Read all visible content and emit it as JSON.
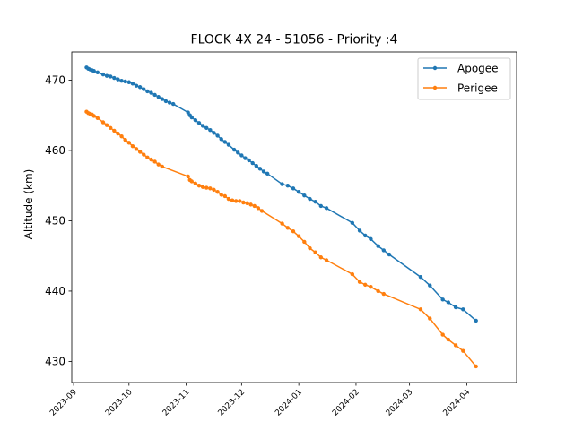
{
  "chart_data": {
    "type": "line",
    "title": "FLOCK 4X 24 - 51056 - Priority :4",
    "xlabel": "",
    "ylabel": "Altitude (km)",
    "xlim": [
      "2023-08-31",
      "2024-04-28"
    ],
    "ylim": [
      427,
      474
    ],
    "yticks": [
      430,
      440,
      450,
      460,
      470
    ],
    "xticks": [
      "2023-09",
      "2023-10",
      "2023-11",
      "2023-12",
      "2024-01",
      "2024-02",
      "2024-03",
      "2024-04"
    ],
    "grid": false,
    "legend_position": "top-right",
    "series": [
      {
        "name": "Apogee",
        "color": "#1f77b4",
        "marker": "circle",
        "points": [
          [
            "2023-09-08",
            471.8
          ],
          [
            "2023-09-09",
            471.6
          ],
          [
            "2023-09-10",
            471.5
          ],
          [
            "2023-09-11",
            471.4
          ],
          [
            "2023-09-12",
            471.3
          ],
          [
            "2023-09-14",
            471.1
          ],
          [
            "2023-09-17",
            470.8
          ],
          [
            "2023-09-19",
            470.6
          ],
          [
            "2023-09-21",
            470.5
          ],
          [
            "2023-09-23",
            470.3
          ],
          [
            "2023-09-25",
            470.1
          ],
          [
            "2023-09-27",
            469.9
          ],
          [
            "2023-09-29",
            469.8
          ],
          [
            "2023-10-01",
            469.7
          ],
          [
            "2023-10-03",
            469.5
          ],
          [
            "2023-10-05",
            469.2
          ],
          [
            "2023-10-07",
            469.0
          ],
          [
            "2023-10-09",
            468.7
          ],
          [
            "2023-10-11",
            468.4
          ],
          [
            "2023-10-13",
            468.2
          ],
          [
            "2023-10-15",
            467.9
          ],
          [
            "2023-10-17",
            467.6
          ],
          [
            "2023-10-19",
            467.3
          ],
          [
            "2023-10-21",
            467.0
          ],
          [
            "2023-10-23",
            466.8
          ],
          [
            "2023-10-25",
            466.6
          ],
          [
            "2023-11-02",
            465.4
          ],
          [
            "2023-11-03",
            465.0
          ],
          [
            "2023-11-04",
            464.7
          ],
          [
            "2023-11-06",
            464.3
          ],
          [
            "2023-11-08",
            463.9
          ],
          [
            "2023-11-10",
            463.5
          ],
          [
            "2023-11-12",
            463.2
          ],
          [
            "2023-11-14",
            462.9
          ],
          [
            "2023-11-16",
            462.5
          ],
          [
            "2023-11-18",
            462.1
          ],
          [
            "2023-11-20",
            461.6
          ],
          [
            "2023-11-22",
            461.2
          ],
          [
            "2023-11-24",
            460.8
          ],
          [
            "2023-11-27",
            460.1
          ],
          [
            "2023-11-29",
            459.7
          ],
          [
            "2023-12-01",
            459.3
          ],
          [
            "2023-12-03",
            458.9
          ],
          [
            "2023-12-05",
            458.6
          ],
          [
            "2023-12-07",
            458.2
          ],
          [
            "2023-12-09",
            457.8
          ],
          [
            "2023-12-11",
            457.4
          ],
          [
            "2023-12-13",
            457.0
          ],
          [
            "2023-12-15",
            456.7
          ],
          [
            "2023-12-23",
            455.2
          ],
          [
            "2023-12-26",
            455.0
          ],
          [
            "2023-12-29",
            454.6
          ],
          [
            "2024-01-01",
            454.1
          ],
          [
            "2024-01-04",
            453.6
          ],
          [
            "2024-01-07",
            453.1
          ],
          [
            "2024-01-10",
            452.7
          ],
          [
            "2024-01-13",
            452.1
          ],
          [
            "2024-01-16",
            451.8
          ],
          [
            "2024-01-30",
            449.7
          ],
          [
            "2024-02-03",
            448.6
          ],
          [
            "2024-02-06",
            447.9
          ],
          [
            "2024-02-09",
            447.4
          ],
          [
            "2024-02-13",
            446.4
          ],
          [
            "2024-02-16",
            445.8
          ],
          [
            "2024-02-19",
            445.2
          ],
          [
            "2024-03-07",
            442.0
          ],
          [
            "2024-03-12",
            440.8
          ],
          [
            "2024-03-19",
            438.8
          ],
          [
            "2024-03-22",
            438.4
          ],
          [
            "2024-03-26",
            437.7
          ],
          [
            "2024-03-30",
            437.4
          ],
          [
            "2024-04-06",
            435.8
          ]
        ]
      },
      {
        "name": "Perigee",
        "color": "#ff7f0e",
        "marker": "circle",
        "points": [
          [
            "2023-09-08",
            465.5
          ],
          [
            "2023-09-09",
            465.3
          ],
          [
            "2023-09-10",
            465.2
          ],
          [
            "2023-09-11",
            465.1
          ],
          [
            "2023-09-12",
            464.9
          ],
          [
            "2023-09-14",
            464.6
          ],
          [
            "2023-09-17",
            464.0
          ],
          [
            "2023-09-19",
            463.6
          ],
          [
            "2023-09-21",
            463.2
          ],
          [
            "2023-09-23",
            462.8
          ],
          [
            "2023-09-25",
            462.4
          ],
          [
            "2023-09-27",
            462.0
          ],
          [
            "2023-09-29",
            461.5
          ],
          [
            "2023-10-01",
            461.1
          ],
          [
            "2023-10-03",
            460.6
          ],
          [
            "2023-10-05",
            460.2
          ],
          [
            "2023-10-07",
            459.8
          ],
          [
            "2023-10-09",
            459.4
          ],
          [
            "2023-10-11",
            459.0
          ],
          [
            "2023-10-13",
            458.7
          ],
          [
            "2023-10-15",
            458.4
          ],
          [
            "2023-10-17",
            458.0
          ],
          [
            "2023-10-19",
            457.7
          ],
          [
            "2023-11-02",
            456.3
          ],
          [
            "2023-11-03",
            455.8
          ],
          [
            "2023-11-04",
            455.6
          ],
          [
            "2023-11-06",
            455.3
          ],
          [
            "2023-11-08",
            455.0
          ],
          [
            "2023-11-10",
            454.8
          ],
          [
            "2023-11-12",
            454.7
          ],
          [
            "2023-11-14",
            454.6
          ],
          [
            "2023-11-16",
            454.4
          ],
          [
            "2023-11-18",
            454.1
          ],
          [
            "2023-11-20",
            453.7
          ],
          [
            "2023-11-22",
            453.5
          ],
          [
            "2023-11-24",
            453.1
          ],
          [
            "2023-11-26",
            452.9
          ],
          [
            "2023-11-28",
            452.8
          ],
          [
            "2023-11-30",
            452.8
          ],
          [
            "2023-12-02",
            452.6
          ],
          [
            "2023-12-04",
            452.5
          ],
          [
            "2023-12-06",
            452.3
          ],
          [
            "2023-12-08",
            452.1
          ],
          [
            "2023-12-10",
            451.8
          ],
          [
            "2023-12-12",
            451.4
          ],
          [
            "2023-12-23",
            449.6
          ],
          [
            "2023-12-26",
            449.0
          ],
          [
            "2023-12-29",
            448.5
          ],
          [
            "2024-01-01",
            447.8
          ],
          [
            "2024-01-04",
            447.0
          ],
          [
            "2024-01-07",
            446.1
          ],
          [
            "2024-01-10",
            445.5
          ],
          [
            "2024-01-13",
            444.8
          ],
          [
            "2024-01-16",
            444.4
          ],
          [
            "2024-01-30",
            442.4
          ],
          [
            "2024-02-03",
            441.3
          ],
          [
            "2024-02-06",
            440.9
          ],
          [
            "2024-02-09",
            440.6
          ],
          [
            "2024-02-13",
            440.0
          ],
          [
            "2024-02-16",
            439.6
          ],
          [
            "2024-03-07",
            437.4
          ],
          [
            "2024-03-12",
            436.1
          ],
          [
            "2024-03-19",
            433.8
          ],
          [
            "2024-03-22",
            433.1
          ],
          [
            "2024-03-26",
            432.3
          ],
          [
            "2024-03-30",
            431.5
          ],
          [
            "2024-04-06",
            429.3
          ]
        ]
      }
    ]
  }
}
